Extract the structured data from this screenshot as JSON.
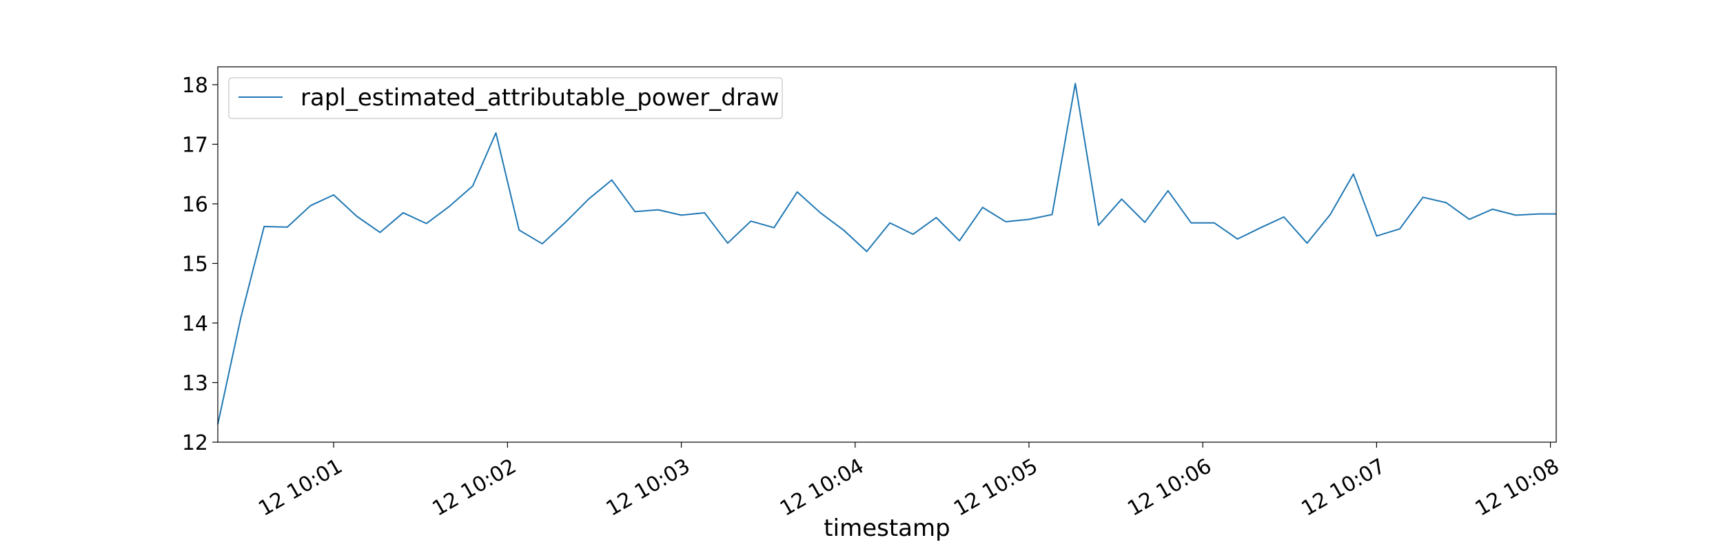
{
  "chart_data": {
    "type": "line",
    "xlabel": "timestamp",
    "ylabel": "",
    "ylim": [
      12,
      18.3
    ],
    "yticks": [
      12,
      13,
      14,
      15,
      16,
      17,
      18
    ],
    "x_start": "12 10:00:20",
    "x_end": "12 10:08:02",
    "xticks": [
      {
        "t": "12 10:01:00",
        "label": "12 10:01"
      },
      {
        "t": "12 10:02:00",
        "label": "12 10:02"
      },
      {
        "t": "12 10:03:00",
        "label": "12 10:03"
      },
      {
        "t": "12 10:04:00",
        "label": "12 10:04"
      },
      {
        "t": "12 10:05:00",
        "label": "12 10:05"
      },
      {
        "t": "12 10:06:00",
        "label": "12 10:06"
      },
      {
        "t": "12 10:07:00",
        "label": "12 10:07"
      },
      {
        "t": "12 10:08:00",
        "label": "12 10:08"
      }
    ],
    "grid": false,
    "legend_position": "top-left",
    "series": [
      {
        "name": "rapl_estimated_attributable_power_draw",
        "color": "#1f77b4",
        "x": [
          "12 10:00:20",
          "12 10:00:28",
          "12 10:00:36",
          "12 10:00:44",
          "12 10:00:52",
          "12 10:01:00",
          "12 10:01:08",
          "12 10:01:16",
          "12 10:01:24",
          "12 10:01:32",
          "12 10:01:40",
          "12 10:01:48",
          "12 10:01:56",
          "12 10:02:04",
          "12 10:02:12",
          "12 10:02:20",
          "12 10:02:28",
          "12 10:02:36",
          "12 10:02:44",
          "12 10:02:52",
          "12 10:03:00",
          "12 10:03:08",
          "12 10:03:16",
          "12 10:03:24",
          "12 10:03:32",
          "12 10:03:40",
          "12 10:03:48",
          "12 10:03:56",
          "12 10:04:04",
          "12 10:04:12",
          "12 10:04:20",
          "12 10:04:28",
          "12 10:04:36",
          "12 10:04:44",
          "12 10:04:52",
          "12 10:05:00",
          "12 10:05:08",
          "12 10:05:16",
          "12 10:05:24",
          "12 10:05:32",
          "12 10:05:40",
          "12 10:05:48",
          "12 10:05:56",
          "12 10:06:04",
          "12 10:06:12",
          "12 10:06:20",
          "12 10:06:28",
          "12 10:06:36",
          "12 10:06:44",
          "12 10:06:52",
          "12 10:07:00",
          "12 10:07:08",
          "12 10:07:16",
          "12 10:07:24",
          "12 10:07:32",
          "12 10:07:40",
          "12 10:07:48",
          "12 10:07:56",
          "12 10:08:02"
        ],
        "values": [
          12.3,
          14.1,
          15.62,
          15.61,
          15.97,
          16.15,
          15.79,
          15.52,
          15.85,
          15.67,
          15.96,
          16.3,
          17.19,
          15.56,
          15.33,
          15.69,
          16.08,
          16.4,
          15.87,
          15.9,
          15.81,
          15.85,
          15.34,
          15.71,
          15.6,
          16.2,
          15.85,
          15.56,
          15.2,
          15.68,
          15.49,
          15.77,
          15.38,
          15.94,
          15.7,
          15.74,
          15.82,
          18.02,
          15.64,
          16.08,
          15.69,
          16.22,
          15.68,
          15.68,
          15.41,
          15.6,
          15.78,
          15.34,
          15.82,
          16.5,
          15.46,
          15.58,
          16.11,
          16.02,
          15.74,
          15.91,
          15.81,
          15.83,
          15.83
        ]
      }
    ]
  }
}
